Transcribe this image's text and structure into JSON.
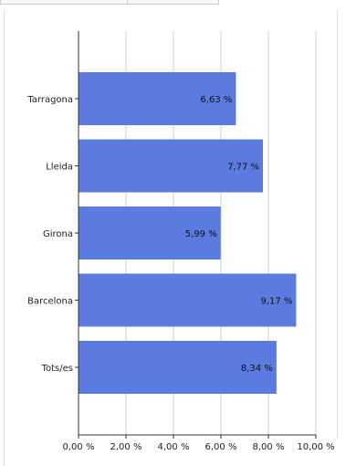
{
  "chart_data": {
    "type": "bar",
    "orientation": "horizontal",
    "title": "",
    "xlabel": "",
    "ylabel": "",
    "categories": [
      "Tarragona",
      "Lleida",
      "Girona",
      "Barcelona",
      "Tots/es"
    ],
    "values": [
      6.63,
      7.77,
      5.99,
      9.17,
      8.34
    ],
    "value_labels": [
      "6,63 %",
      "7,77 %",
      "5,99 %",
      "9,17 %",
      "8,34 %"
    ],
    "x_ticks": [
      0,
      2,
      4,
      6,
      8,
      10
    ],
    "x_tick_labels": [
      "0,00 %",
      "2,00 %",
      "4,00 %",
      "6,00 %",
      "8,00 %",
      "10,00 %"
    ],
    "xlim": [
      0,
      10
    ],
    "grid": true,
    "legend": "none",
    "bar_color": "#5b7be0"
  }
}
